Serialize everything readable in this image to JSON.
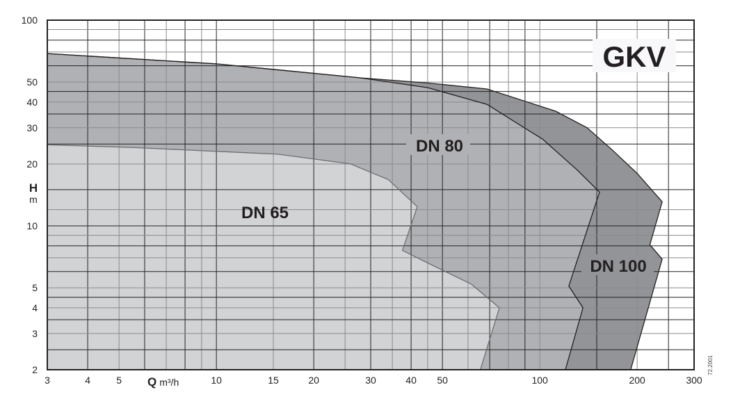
{
  "chart_data": {
    "type": "area",
    "title": "GKV",
    "xlabel": "Q",
    "xunit": "m³/h",
    "ylabel": "H",
    "yunit": "m",
    "xscale": "log",
    "yscale": "log",
    "xlim": [
      3,
      300
    ],
    "ylim": [
      2,
      100
    ],
    "grid": true,
    "x_ticks": [
      3,
      4,
      5,
      10,
      15,
      20,
      30,
      40,
      50,
      100,
      200,
      300
    ],
    "y_ticks": [
      100,
      50,
      40,
      30,
      20,
      10,
      5,
      4,
      3,
      2
    ],
    "code": "72.2001",
    "colors": {
      "DN 65": "#d2d3d5",
      "DN 80": "#b0b1b4",
      "DN 100": "#939497"
    },
    "series": [
      {
        "name": "DN 100",
        "points": [
          [
            3,
            68.8
          ],
          [
            10,
            61.3
          ],
          [
            28,
            52.4
          ],
          [
            45,
            49.5
          ],
          [
            68.6,
            46.3
          ],
          [
            112,
            36.1
          ],
          [
            140,
            30
          ],
          [
            167,
            23.5
          ],
          [
            200,
            18
          ],
          [
            239,
            13.1
          ],
          [
            219,
            8.1
          ],
          [
            239,
            6.9
          ],
          [
            191,
            2
          ]
        ]
      },
      {
        "name": "DN 80",
        "points": [
          [
            3,
            68.8
          ],
          [
            10,
            61.3
          ],
          [
            28,
            52.4
          ],
          [
            45,
            47
          ],
          [
            68.6,
            39
          ],
          [
            102,
            26.4
          ],
          [
            131,
            18.6
          ],
          [
            153,
            14.6
          ],
          [
            123,
            5.1
          ],
          [
            136,
            4.0
          ],
          [
            120,
            2
          ]
        ]
      },
      {
        "name": "DN 65",
        "points": [
          [
            3,
            24.8
          ],
          [
            5.7,
            24
          ],
          [
            15.5,
            22.3
          ],
          [
            26,
            20
          ],
          [
            34,
            16.8
          ],
          [
            41.8,
            12.4
          ],
          [
            37.6,
            7.6
          ],
          [
            46,
            6.5
          ],
          [
            61.5,
            5.2
          ],
          [
            75,
            4.0
          ],
          [
            65.5,
            2
          ]
        ]
      }
    ]
  }
}
